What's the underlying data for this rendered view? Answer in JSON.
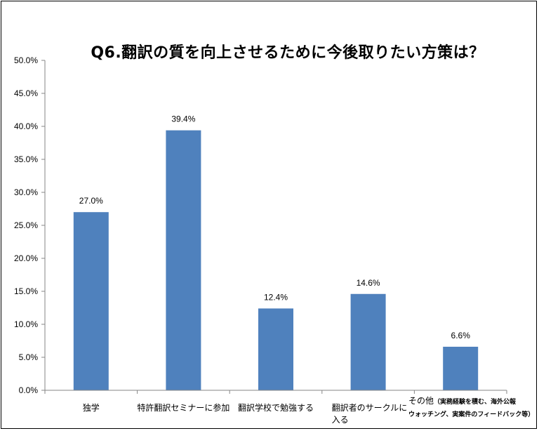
{
  "chart_data": {
    "type": "bar",
    "title": "Q6.翻訳の質を向上させるために今後取りたい方策は？",
    "categories": [
      "独学",
      "特許翻訳セミナーに参加",
      "翻訳学校で勉強する",
      "翻訳者のサークルに入る",
      "その他（実務経験を積む、海外公報ウォッチング、実案件のフィードバック等）"
    ],
    "category_display": [
      {
        "lines": [
          "独学"
        ]
      },
      {
        "lines": [
          "特許翻訳セミナーに参加"
        ]
      },
      {
        "lines": [
          "翻訳学校で勉強する"
        ]
      },
      {
        "lines": [
          "翻訳者のサークルに",
          "入る"
        ]
      },
      {
        "main": "その他",
        "small1": "（実務経験を積む、海外公報",
        "small2": "ウォッチング、実案件のフィードバック等）"
      }
    ],
    "values": [
      27.0,
      39.4,
      12.4,
      14.6,
      6.6
    ],
    "data_labels": [
      "27.0%",
      "39.4%",
      "12.4%",
      "14.6%",
      "6.6%"
    ],
    "y_ticks": [
      "0.0%",
      "5.0%",
      "10.0%",
      "15.0%",
      "20.0%",
      "25.0%",
      "30.0%",
      "35.0%",
      "40.0%",
      "45.0%",
      "50.0%"
    ],
    "ylim": [
      0,
      50
    ],
    "grid": false,
    "bar_color": "#4f81bd",
    "xlabel": "",
    "ylabel": ""
  }
}
